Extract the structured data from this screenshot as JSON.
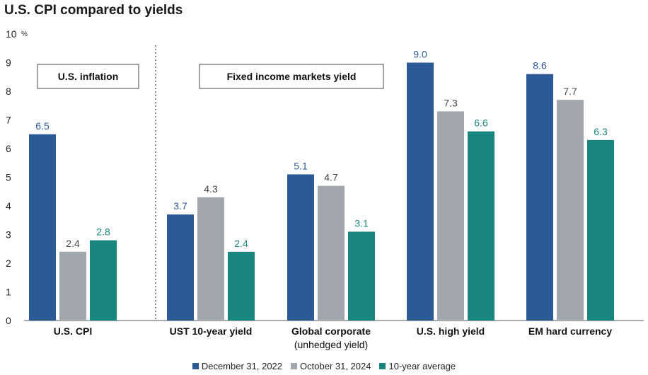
{
  "chart_data": {
    "type": "bar",
    "title": "U.S. CPI compared to yields",
    "ylabel_unit": "%",
    "ylim": [
      0,
      10
    ],
    "yticks": [
      0,
      1,
      2,
      3,
      4,
      5,
      6,
      7,
      8,
      9,
      10
    ],
    "categories": [
      {
        "label": "U.S. CPI",
        "sublabel": ""
      },
      {
        "label": "UST 10-year yield",
        "sublabel": ""
      },
      {
        "label": "Global corporate",
        "sublabel": "(unhedged yield)"
      },
      {
        "label": "U.S. high yield",
        "sublabel": ""
      },
      {
        "label": "EM hard currency",
        "sublabel": ""
      }
    ],
    "series": [
      {
        "name": "December 31, 2022",
        "color": "#2b5a96",
        "label_color": "#2b5a96",
        "values": [
          6.5,
          3.7,
          5.1,
          9.0,
          8.6
        ],
        "labels": [
          "6.5",
          "3.7",
          "5.1",
          "9.0",
          "8.6"
        ]
      },
      {
        "name": "October 31, 2024",
        "color": "#a1a7ad",
        "label_color": "#444444",
        "values": [
          2.4,
          4.3,
          4.7,
          7.3,
          7.7
        ],
        "labels": [
          "2.4",
          "4.3",
          "4.7",
          "7.3",
          "7.7"
        ]
      },
      {
        "name": "10-year average",
        "color": "#1a857e",
        "label_color": "#1a857e",
        "values": [
          2.8,
          2.4,
          3.1,
          6.6,
          6.3
        ],
        "labels": [
          "2.8",
          "2.4",
          "3.1",
          "6.6",
          "6.3"
        ]
      }
    ],
    "annotations": [
      "U.S. inflation",
      "Fixed income markets yield"
    ]
  }
}
